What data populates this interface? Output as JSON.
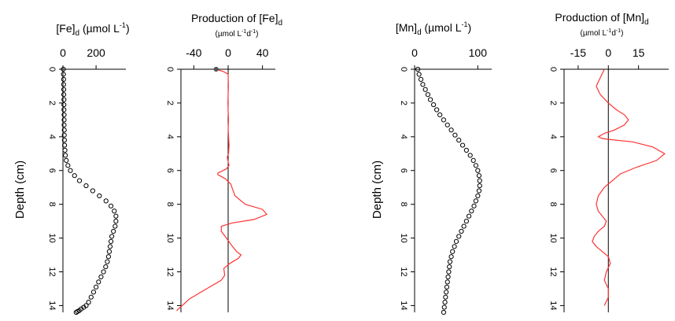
{
  "chart_data": [
    {
      "type": "scatter",
      "title": "[Fe]d (µmol L-1)",
      "title_parts": {
        "main": "[Fe]",
        "sub": "d",
        "unit_open": "(µmol L",
        "unit_sup": "-1",
        "unit_close": ")"
      },
      "ylabel": "Depth (cm)",
      "xlim": [
        0,
        380
      ],
      "ylim": [
        14.4,
        0
      ],
      "xticks": [
        "0",
        "200"
      ],
      "xtick_values": [
        0,
        200
      ],
      "yticks": [
        "0",
        "2",
        "4",
        "6",
        "8",
        "10",
        "12",
        "14"
      ],
      "ytick_values": [
        0,
        2,
        4,
        6,
        8,
        10,
        12,
        14
      ],
      "series": [
        {
          "color": "#000000",
          "x": [
            2,
            3,
            4,
            4,
            5,
            5,
            6,
            6,
            6,
            7,
            7,
            7,
            8,
            8,
            9,
            10,
            12,
            15,
            20,
            30,
            45,
            70,
            100,
            140,
            180,
            220,
            260,
            290,
            310,
            320,
            320,
            315,
            305,
            295,
            290,
            285,
            280,
            275,
            268,
            258,
            245,
            230,
            215,
            200,
            185,
            170,
            155,
            140,
            125,
            110,
            98,
            88,
            80
          ],
          "y": [
            0.0,
            0.3,
            0.6,
            0.9,
            1.2,
            1.5,
            1.8,
            2.1,
            2.4,
            2.7,
            3.0,
            3.3,
            3.6,
            3.9,
            4.2,
            4.5,
            4.8,
            5.1,
            5.4,
            5.7,
            6.0,
            6.3,
            6.6,
            6.9,
            7.2,
            7.5,
            7.8,
            8.1,
            8.4,
            8.7,
            9.0,
            9.3,
            9.6,
            9.9,
            10.2,
            10.5,
            10.8,
            11.1,
            11.4,
            11.7,
            12.0,
            12.3,
            12.6,
            12.9,
            13.2,
            13.5,
            13.8,
            14.0,
            14.1,
            14.2,
            14.3,
            14.35,
            14.4
          ]
        }
      ]
    },
    {
      "type": "line",
      "title": "Production of [Fe]d (µmol L-1d-1)",
      "title_parts": {
        "main": "Production of [Fe]",
        "sub": "d",
        "unit_open": "(µmol L",
        "unit_sup": "-1",
        "unit_mid": "d",
        "unit_sup2": "-1",
        "unit_close": ")"
      },
      "xlim": [
        -55,
        55
      ],
      "ylim": [
        14.4,
        0
      ],
      "xticks": [
        "-40",
        "0",
        "40"
      ],
      "xtick_values": [
        -40,
        0,
        40
      ],
      "yticks": [
        "0",
        "2",
        "4",
        "6",
        "8",
        "10",
        "12",
        "14"
      ],
      "ytick_values": [
        0,
        2,
        4,
        6,
        8,
        10,
        12,
        14
      ],
      "marker_point": {
        "x": -14,
        "y": 0
      },
      "series": [
        {
          "color": "#ff3333",
          "x": [
            -14,
            -5,
            0,
            0.3,
            0,
            -0.3,
            0,
            0.5,
            0,
            0.5,
            1,
            0.5,
            -1,
            0,
            1,
            -2,
            -6,
            -10,
            -12,
            -12,
            -8,
            -3,
            3,
            8,
            20,
            40,
            45,
            30,
            5,
            -8,
            -8,
            -2,
            5,
            10,
            15,
            12,
            2,
            -5,
            -4,
            -8,
            -25,
            -45,
            -60
          ],
          "y": [
            0,
            0.15,
            0.3,
            1,
            1.5,
            2,
            2.5,
            3,
            3.5,
            4,
            4.5,
            5,
            5.2,
            5.5,
            5.7,
            5.9,
            6.0,
            6.1,
            6.15,
            6.25,
            6.35,
            6.5,
            6.8,
            7.5,
            8.0,
            8.3,
            8.6,
            8.9,
            9.1,
            9.3,
            9.6,
            10.0,
            10.5,
            10.8,
            11.0,
            11.2,
            11.5,
            11.8,
            12.2,
            12.5,
            13.0,
            13.6,
            14.3
          ]
        }
      ]
    },
    {
      "type": "scatter",
      "title": "[Mn]d (µmol L-1)",
      "title_parts": {
        "main": "[Mn]",
        "sub": "d",
        "unit_open": "(µmol L",
        "unit_sup": "-1",
        "unit_close": ")"
      },
      "ylabel": "Depth (cm)",
      "xlim": [
        0,
        122
      ],
      "ylim": [
        14.4,
        0
      ],
      "xticks": [
        "0",
        "100"
      ],
      "xtick_values": [
        0,
        100
      ],
      "yticks": [
        "0",
        "2",
        "4",
        "6",
        "8",
        "10",
        "12",
        "14"
      ],
      "ytick_values": [
        0,
        2,
        4,
        6,
        8,
        10,
        12,
        14
      ],
      "series": [
        {
          "color": "#000000",
          "x": [
            5,
            7,
            10,
            13,
            17,
            21,
            25,
            30,
            35,
            40,
            46,
            52,
            58,
            64,
            70,
            76,
            82,
            88,
            93,
            97,
            100,
            102,
            103,
            103,
            102,
            100,
            97,
            94,
            90,
            86,
            82,
            78,
            74,
            70,
            66,
            63,
            60,
            58,
            56,
            55,
            54,
            53,
            52,
            51,
            50,
            49,
            48,
            47,
            46
          ],
          "y": [
            0.0,
            0.3,
            0.6,
            0.9,
            1.2,
            1.5,
            1.8,
            2.1,
            2.4,
            2.7,
            3.0,
            3.3,
            3.6,
            3.9,
            4.2,
            4.5,
            4.8,
            5.1,
            5.4,
            5.7,
            6.0,
            6.3,
            6.6,
            6.9,
            7.2,
            7.5,
            7.8,
            8.1,
            8.4,
            8.7,
            9.0,
            9.3,
            9.6,
            9.9,
            10.2,
            10.5,
            10.8,
            11.1,
            11.4,
            11.7,
            12.0,
            12.3,
            12.6,
            12.9,
            13.2,
            13.5,
            13.8,
            14.1,
            14.4
          ]
        }
      ]
    },
    {
      "type": "line",
      "title": "Production of [Mn]d (µmol L-1d-1)",
      "title_parts": {
        "main": "Production of [Mn]",
        "sub": "d",
        "unit_open": "(µmol L",
        "unit_sup": "-1",
        "unit_mid": "d",
        "unit_sup2": "-1",
        "unit_close": ")"
      },
      "xlim": [
        -22,
        30
      ],
      "ylim": [
        14.4,
        0
      ],
      "xticks": [
        "-15",
        "0",
        "15"
      ],
      "xtick_values": [
        -15,
        0,
        15
      ],
      "yticks": [
        "0",
        "2",
        "4",
        "6",
        "8",
        "10",
        "12",
        "14"
      ],
      "ytick_values": [
        0,
        2,
        4,
        6,
        8,
        10,
        12,
        14
      ],
      "series": [
        {
          "color": "#ff3333",
          "x": [
            -2,
            -4,
            -6,
            -4,
            0,
            4,
            8,
            10,
            8,
            3,
            -2,
            -5,
            -3,
            0,
            12,
            22,
            28,
            24,
            14,
            6,
            2,
            -2,
            -5,
            -6,
            -5,
            -3,
            -1,
            -2,
            -5,
            -7,
            -8,
            -6,
            -3,
            0,
            1,
            -1,
            -2,
            0,
            0,
            -2
          ],
          "y": [
            0.0,
            0.5,
            1.0,
            1.5,
            2.0,
            2.4,
            2.7,
            3.0,
            3.3,
            3.6,
            3.8,
            4.0,
            4.1,
            4.15,
            4.3,
            4.6,
            5.0,
            5.4,
            5.8,
            6.2,
            6.6,
            7.0,
            7.5,
            8.0,
            8.4,
            8.7,
            9.0,
            9.3,
            9.6,
            9.9,
            10.2,
            10.5,
            10.8,
            11.1,
            11.5,
            12.0,
            12.5,
            13.0,
            13.5,
            14.0
          ]
        }
      ]
    }
  ]
}
